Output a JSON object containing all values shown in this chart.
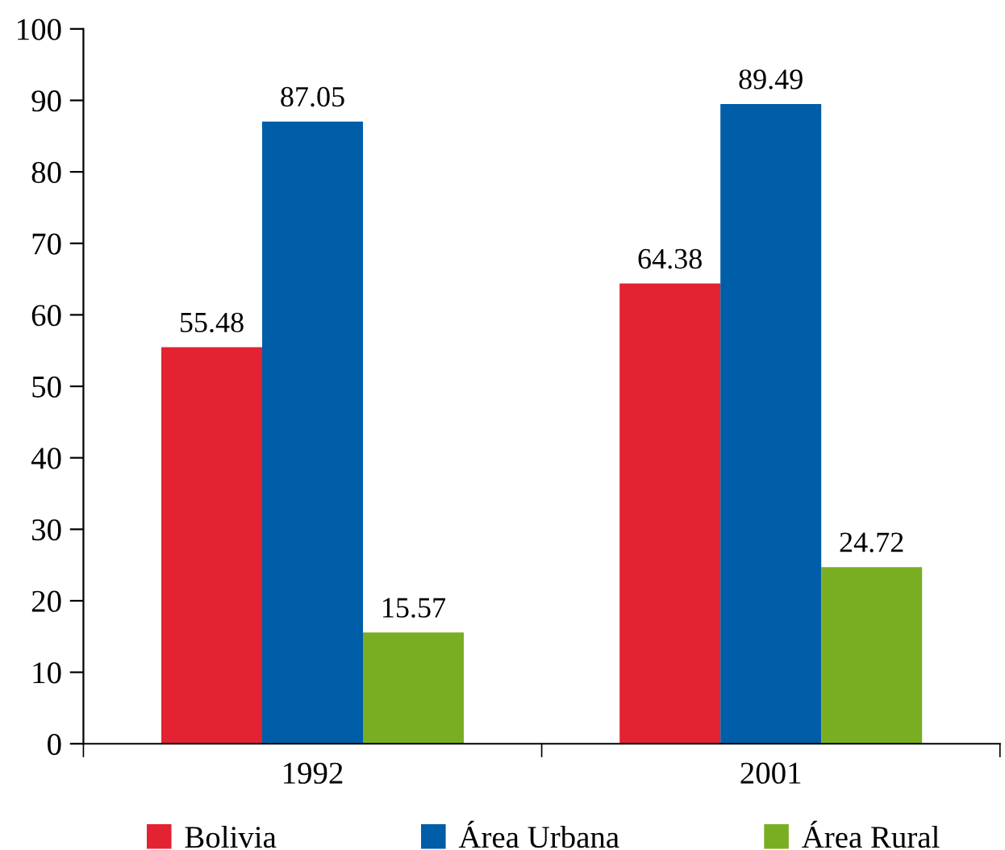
{
  "chart_data": {
    "type": "bar",
    "categories": [
      "1992",
      "2001"
    ],
    "series": [
      {
        "name": "Bolivia",
        "color": "#e32232",
        "values": [
          55.48,
          64.38
        ]
      },
      {
        "name": "Área Urbana",
        "color": "#005da8",
        "values": [
          87.05,
          89.49
        ]
      },
      {
        "name": "Área Rural",
        "color": "#79ae23",
        "values": [
          15.57,
          24.72
        ]
      }
    ],
    "ylim": [
      0,
      100
    ],
    "yticks": [
      0,
      10,
      20,
      30,
      40,
      50,
      60,
      70,
      80,
      90,
      100
    ],
    "data_labels": true,
    "legend": "bottom",
    "grid": false
  }
}
